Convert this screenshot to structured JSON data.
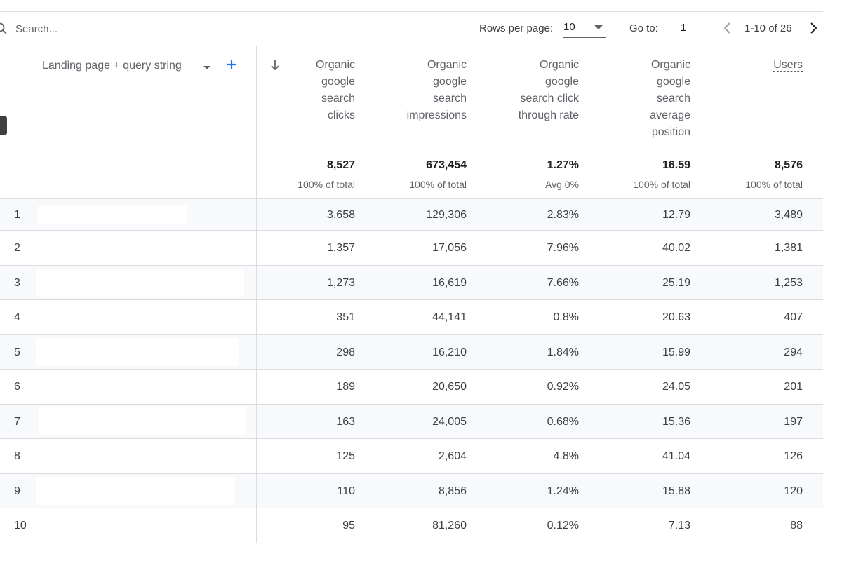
{
  "toolbar": {
    "search_placeholder": "Search...",
    "rows_per_page_label": "Rows per page:",
    "rows_per_page_value": "10",
    "go_to_label": "Go to:",
    "go_to_value": "1",
    "range_text": "1-10 of 26"
  },
  "table": {
    "dimension_header": "Landing page + query string",
    "columns": [
      {
        "lines": [
          "Organic",
          "google",
          "search",
          "clicks"
        ],
        "total": "8,527",
        "total_sub": "100% of total"
      },
      {
        "lines": [
          "Organic",
          "google",
          "search",
          "impressions"
        ],
        "total": "673,454",
        "total_sub": "100% of total"
      },
      {
        "lines": [
          "Organic",
          "google",
          "search click",
          "through rate"
        ],
        "total": "1.27%",
        "total_sub": "Avg 0%"
      },
      {
        "lines": [
          "Organic",
          "google",
          "search",
          "average",
          "position"
        ],
        "total": "16.59",
        "total_sub": "100% of total"
      },
      {
        "lines": [
          "Users"
        ],
        "total": "8,576",
        "total_sub": "100% of total"
      }
    ],
    "rows": [
      {
        "n": "1",
        "values": [
          "3,658",
          "129,306",
          "2.83%",
          "12.79",
          "3,489"
        ]
      },
      {
        "n": "2",
        "values": [
          "1,357",
          "17,056",
          "7.96%",
          "40.02",
          "1,381"
        ]
      },
      {
        "n": "3",
        "values": [
          "1,273",
          "16,619",
          "7.66%",
          "25.19",
          "1,253"
        ]
      },
      {
        "n": "4",
        "values": [
          "351",
          "44,141",
          "0.8%",
          "20.63",
          "407"
        ]
      },
      {
        "n": "5",
        "values": [
          "298",
          "16,210",
          "1.84%",
          "15.99",
          "294"
        ]
      },
      {
        "n": "6",
        "values": [
          "189",
          "20,650",
          "0.92%",
          "24.05",
          "201"
        ]
      },
      {
        "n": "7",
        "values": [
          "163",
          "24,005",
          "0.68%",
          "15.36",
          "197"
        ]
      },
      {
        "n": "8",
        "values": [
          "125",
          "2,604",
          "4.8%",
          "41.04",
          "126"
        ]
      },
      {
        "n": "9",
        "values": [
          "110",
          "8,856",
          "1.24%",
          "15.88",
          "120"
        ]
      },
      {
        "n": "10",
        "values": [
          "95",
          "81,260",
          "0.12%",
          "7.13",
          "88"
        ]
      }
    ]
  },
  "colors": {
    "accent": "#1a73e8",
    "text": "#3c4043",
    "muted": "#5f6368",
    "row_shade": "#f8f9fa"
  }
}
